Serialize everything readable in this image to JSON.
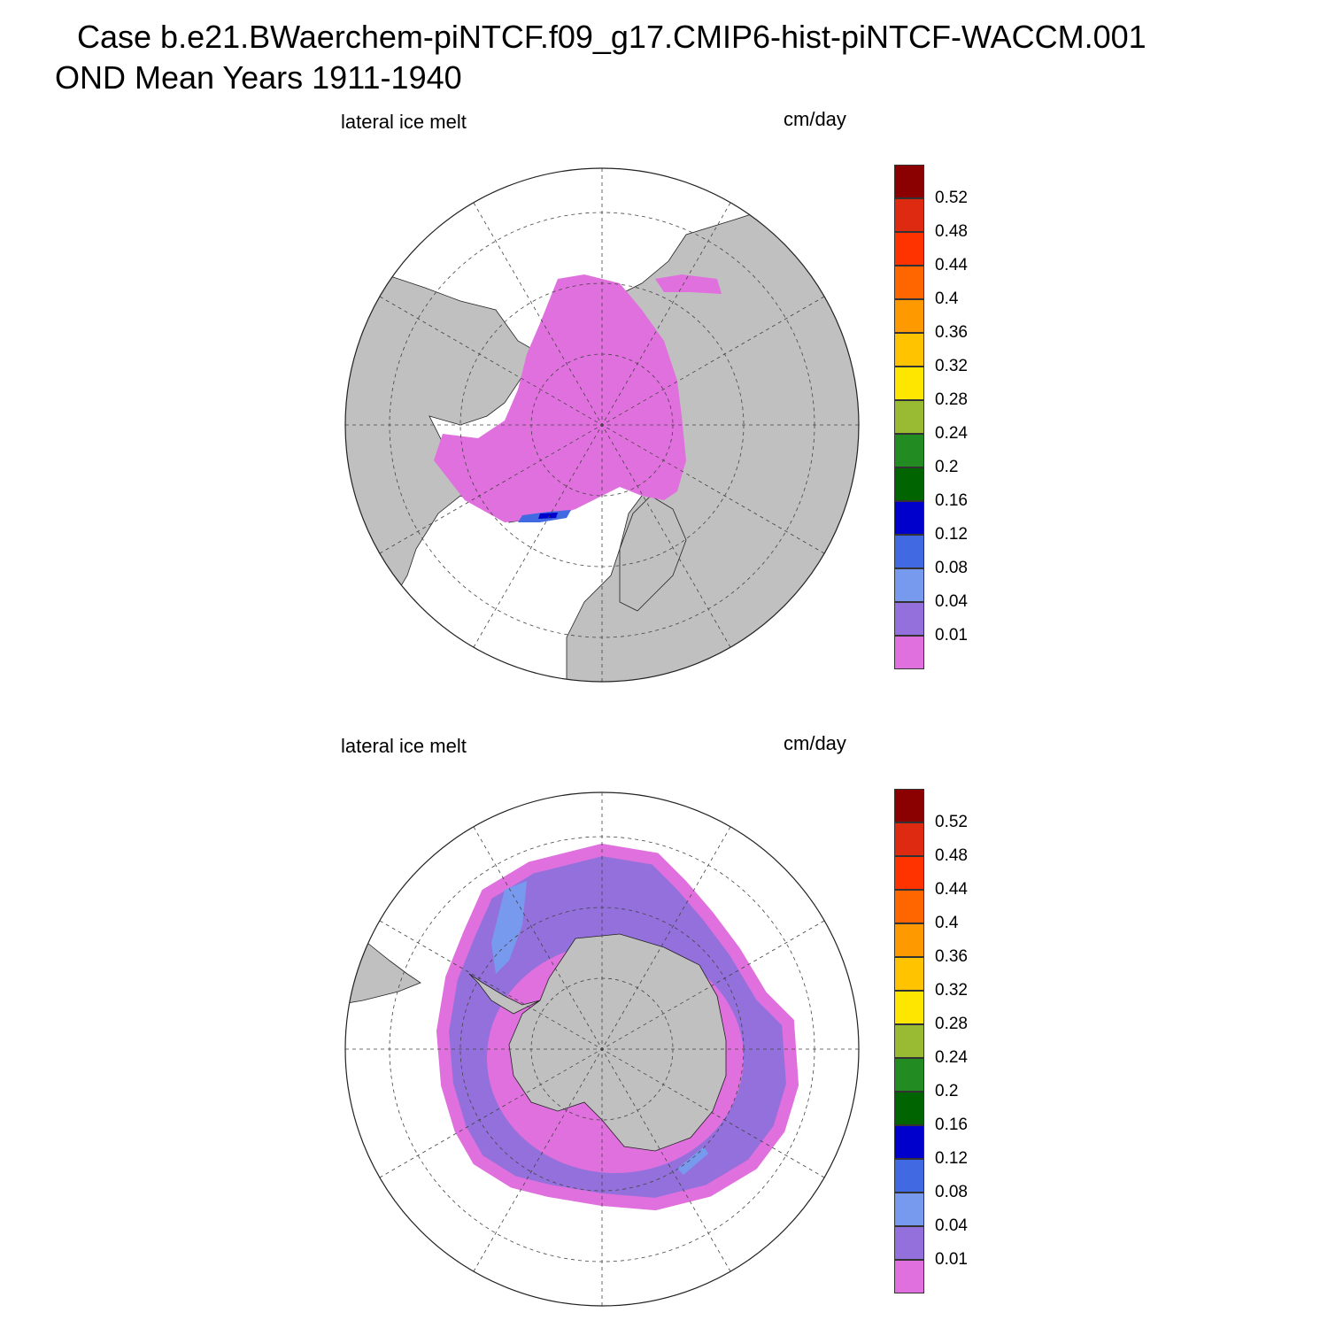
{
  "title": {
    "line1": "Case b.e21.BWaerchem-piNTCF.f09_g17.CMIP6-hist-piNTCF-WACCM.001",
    "line2": "OND Mean   Years 1911-1940"
  },
  "panels": [
    {
      "id": "north",
      "hemisphere": "Northern Hemisphere",
      "field_label": "lateral ice melt",
      "units": "cm/day"
    },
    {
      "id": "south",
      "hemisphere": "Southern Hemisphere",
      "field_label": "lateral ice melt",
      "units": "cm/day"
    }
  ],
  "colors": {
    "land": "#c0c0c0",
    "ocean": "#ffffff",
    "grid_line": "#444444"
  },
  "colorbar": {
    "levels": [
      "0.52",
      "0.48",
      "0.44",
      "0.4",
      "0.36",
      "0.32",
      "0.28",
      "0.24",
      "0.2",
      "0.16",
      "0.12",
      "0.08",
      "0.04",
      "0.01"
    ],
    "colors": [
      "#8b0000",
      "#dd2a10",
      "#ff3300",
      "#ff6600",
      "#ff9900",
      "#ffc300",
      "#ffe600",
      "#99bb33",
      "#228b22",
      "#006400",
      "#0000cc",
      "#4169e1",
      "#7799ee",
      "#9370db",
      "#e070dd"
    ]
  }
}
